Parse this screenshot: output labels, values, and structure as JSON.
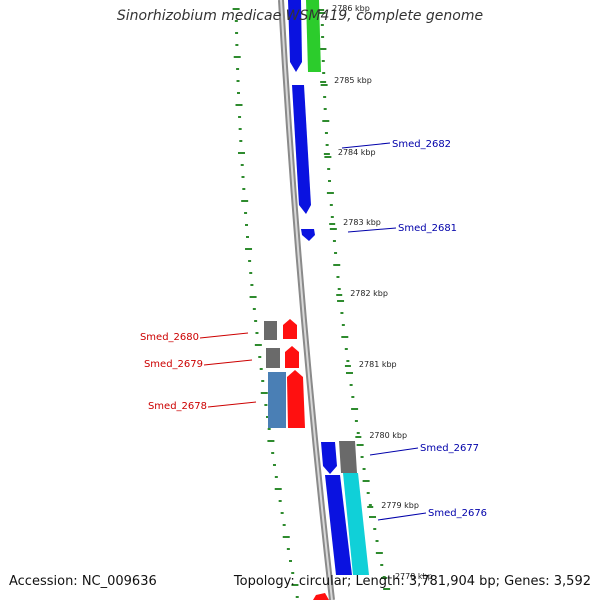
{
  "title": "Sinorhizobium medicae WSM419, complete genome",
  "accession": "Accession: NC_009636",
  "topology": "Topology: circular; Length: 3,781,904 bp; Genes: 3,592",
  "colors": {
    "backbone": "#8a8a8a",
    "gc_ticks": "#2e8b2e",
    "forward_gene": "#0a12e0",
    "reverse_gene": "#ff1010",
    "gray_gene": "#6a6a6a",
    "steelblue_gene": "#4a7fb5",
    "cyan_gene": "#10d0d8",
    "green_gene": "#2ccc2c",
    "forward_label": "#0000aa",
    "reverse_label": "#cc0000"
  },
  "kbp_ticks": [
    "2786 kbp",
    "2785 kbp",
    "2784 kbp",
    "2783 kbp",
    "2782 kbp",
    "2781 kbp",
    "2780 kbp",
    "2779 kbp",
    "2778 kbp"
  ],
  "gene_labels": {
    "forward": [
      "Smed_2682",
      "Smed_2681",
      "Smed_2677",
      "Smed_2676"
    ],
    "reverse": [
      "Smed_2680",
      "Smed_2679",
      "Smed_2678"
    ]
  }
}
